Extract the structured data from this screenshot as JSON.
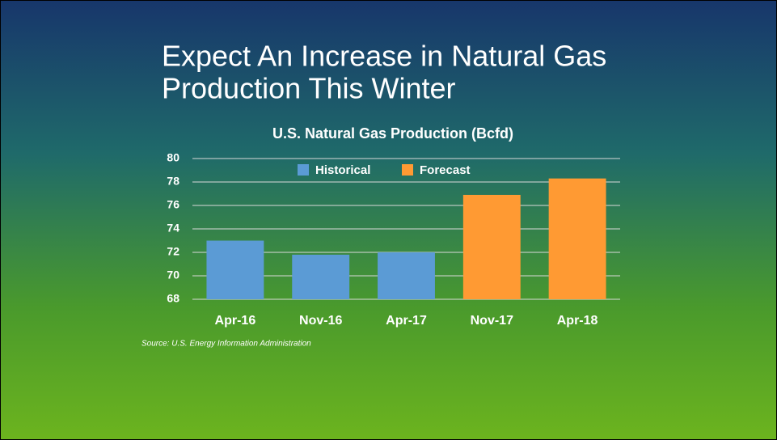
{
  "slide_title_lines": [
    "Expect An Increase in Natural Gas",
    "Production This Winter"
  ],
  "chart_data": {
    "type": "bar",
    "title": "U.S. Natural Gas Production (Bcfd)",
    "categories": [
      "Apr-16",
      "Nov-16",
      "Apr-17",
      "Nov-17",
      "Apr-18"
    ],
    "series": [
      {
        "name": "Historical",
        "color": "#5b9bd5",
        "values": [
          73.0,
          71.8,
          72.0,
          null,
          null
        ]
      },
      {
        "name": "Forecast",
        "color": "#ff9a33",
        "values": [
          null,
          null,
          null,
          76.9,
          78.3
        ]
      }
    ],
    "ylim": [
      68,
      80
    ],
    "yticks": [
      68,
      70,
      72,
      74,
      76,
      78,
      80
    ],
    "grid": true,
    "legend": "top",
    "source": "Source: U.S. Energy Information Administration"
  }
}
